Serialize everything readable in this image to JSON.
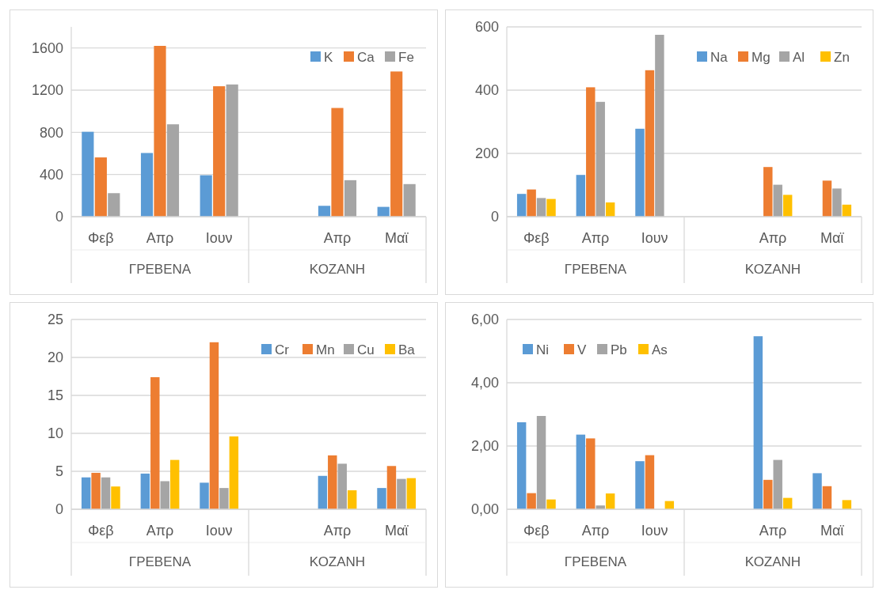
{
  "chart_data": [
    {
      "type": "bar",
      "categories": [
        "Φεβ",
        "Απρ",
        "Ιουν",
        null,
        "Απρ",
        "Μαϊ"
      ],
      "annotations": [
        "ΓΡΕΒΕΝΑ",
        "ΚΟΖΑΝΗ"
      ],
      "ylim": [
        0,
        1800
      ],
      "yticks": [
        0,
        400,
        800,
        1200,
        1600
      ],
      "grid": "y",
      "legend": "top right",
      "series": [
        {
          "name": "K",
          "color": "#5b9bd5",
          "values": [
            805,
            604,
            393,
            null,
            103,
            93
          ]
        },
        {
          "name": "Ca",
          "color": "#ed7d31",
          "values": [
            562,
            1620,
            1237,
            null,
            1031,
            1377
          ]
        },
        {
          "name": "Fe",
          "color": "#a5a5a5",
          "values": [
            223,
            876,
            1254,
            null,
            346,
            309
          ]
        }
      ]
    },
    {
      "type": "bar",
      "categories": [
        "Φεβ",
        "Απρ",
        "Ιουν",
        null,
        "Απρ",
        "Μαϊ"
      ],
      "annotations": [
        "ΓΡΕΒΕΝΑ",
        "ΚΟΖΑΝΗ"
      ],
      "ylim": [
        0,
        600
      ],
      "yticks": [
        0,
        200,
        400,
        600
      ],
      "grid": "y",
      "legend": "top right",
      "series": [
        {
          "name": "Na",
          "color": "#5b9bd5",
          "values": [
            72,
            132,
            278,
            null,
            null,
            null
          ]
        },
        {
          "name": "Mg",
          "color": "#ed7d31",
          "values": [
            86,
            409,
            463,
            null,
            157,
            114
          ]
        },
        {
          "name": "Al",
          "color": "#a5a5a5",
          "values": [
            59,
            363,
            575,
            null,
            101,
            89
          ]
        },
        {
          "name": "Zn",
          "color": "#ffc000",
          "values": [
            56,
            45,
            null,
            null,
            69,
            38
          ]
        }
      ]
    },
    {
      "type": "bar",
      "categories": [
        "Φεβ",
        "Απρ",
        "Ιουν",
        null,
        "Απρ",
        "Μαϊ"
      ],
      "annotations": [
        "ΓΡΕΒΕΝΑ",
        "ΚΟΖΑΝΗ"
      ],
      "ylim": [
        0,
        25
      ],
      "yticks": [
        0,
        5,
        10,
        15,
        20,
        25
      ],
      "grid": "y",
      "legend": "top right",
      "series": [
        {
          "name": "Cr",
          "color": "#5b9bd5",
          "values": [
            4.2,
            4.7,
            3.5,
            null,
            4.4,
            2.8
          ]
        },
        {
          "name": "Mn",
          "color": "#ed7d31",
          "values": [
            4.8,
            17.4,
            22.0,
            null,
            7.1,
            5.7
          ]
        },
        {
          "name": "Cu",
          "color": "#a5a5a5",
          "values": [
            4.2,
            3.7,
            2.8,
            null,
            6.0,
            4.0
          ]
        },
        {
          "name": "Ba",
          "color": "#ffc000",
          "values": [
            3.0,
            6.5,
            9.6,
            null,
            2.5,
            4.1
          ]
        }
      ]
    },
    {
      "type": "bar",
      "categories": [
        "Φεβ",
        "Απρ",
        "Ιουν",
        null,
        "Απρ",
        "Μαϊ"
      ],
      "annotations": [
        "ΓΡΕΒΕΝΑ",
        "ΚΟΖΑΝΗ"
      ],
      "ylim": [
        0,
        6
      ],
      "yticks": [
        {
          "value": 0,
          "label": "0,00"
        },
        {
          "value": 2,
          "label": "2,00"
        },
        {
          "value": 4,
          "label": "4,00"
        },
        {
          "value": 6,
          "label": "6,00"
        }
      ],
      "grid": "y",
      "legend": "top left",
      "series": [
        {
          "name": "Ni",
          "color": "#5b9bd5",
          "values": [
            2.75,
            2.36,
            1.52,
            null,
            5.47,
            1.14
          ]
        },
        {
          "name": "V",
          "color": "#ed7d31",
          "values": [
            0.51,
            2.24,
            1.71,
            null,
            0.93,
            0.73
          ]
        },
        {
          "name": "Pb",
          "color": "#a5a5a5",
          "values": [
            2.95,
            0.12,
            null,
            null,
            1.56,
            null
          ]
        },
        {
          "name": "As",
          "color": "#ffc000",
          "values": [
            0.31,
            0.5,
            0.26,
            null,
            0.36,
            0.29
          ]
        }
      ]
    }
  ]
}
